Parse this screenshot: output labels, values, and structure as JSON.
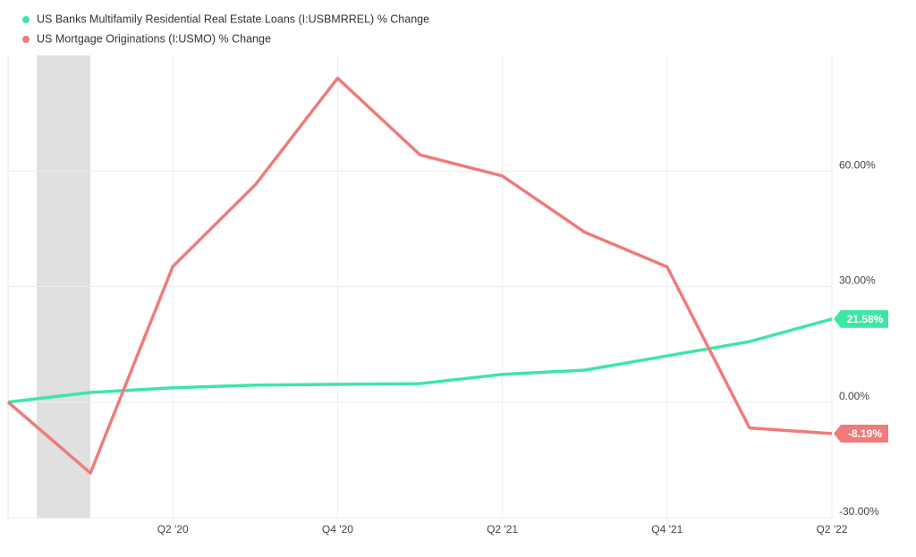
{
  "chart_data": {
    "type": "line",
    "categories": [
      null,
      null,
      "Q2 '20",
      null,
      "Q4 '20",
      null,
      "Q2 '21",
      null,
      "Q4 '21",
      null,
      "Q2 '22"
    ],
    "series": [
      {
        "name": "US Banks Multifamily Residential Real Estate Loans (I:USBMRREL) % Change",
        "color": "#3ee6a5",
        "values": [
          0,
          2.5,
          3.7,
          4.4,
          4.6,
          4.8,
          7.2,
          8.3,
          12.0,
          15.7,
          21.58
        ],
        "value_labels": [
          null,
          null,
          null,
          null,
          null,
          null,
          null,
          null,
          null,
          null,
          "21.58%"
        ]
      },
      {
        "name": "US Mortgage Originations (I:USMO) % Change",
        "color": "#ef7b7b",
        "values": [
          0,
          -18.4,
          35.2,
          56.4,
          84.1,
          64.2,
          58.7,
          44.1,
          35.1,
          -6.7,
          -8.19
        ],
        "value_labels": [
          null,
          null,
          null,
          null,
          null,
          null,
          null,
          null,
          null,
          null,
          "-8.19%"
        ]
      }
    ],
    "ylim": [
      -30,
      90
    ],
    "yticks": [
      {
        "value": -30,
        "label": "-30.00%"
      },
      {
        "value": 0,
        "label": "0.00%"
      },
      {
        "value": 30,
        "label": "30.00%"
      },
      {
        "value": 60,
        "label": "60.00%"
      }
    ],
    "grid": true
  }
}
